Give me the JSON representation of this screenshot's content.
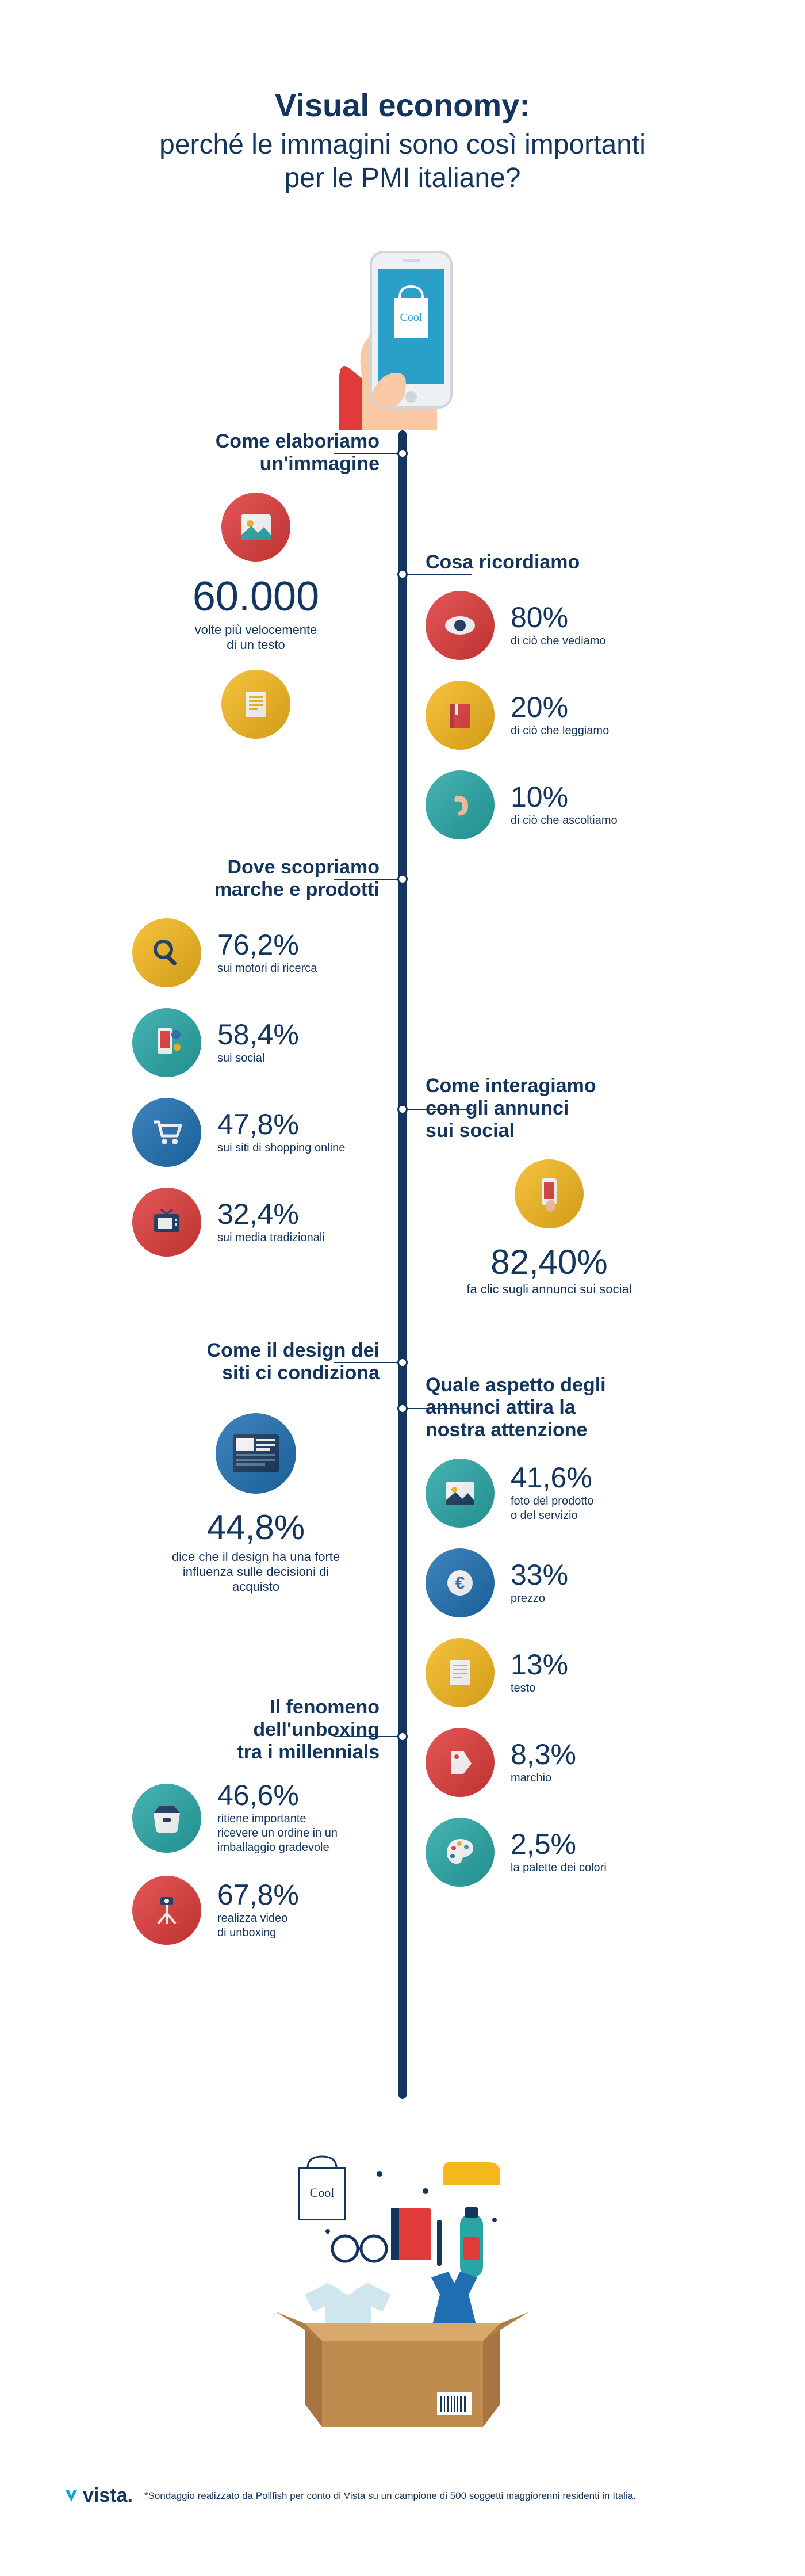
{
  "colors": {
    "navy": "#14355e",
    "blue": "#1f6fb2",
    "red": "#e03a3a",
    "yellow": "#f5b81c",
    "teal": "#28a6a6",
    "skin": "#f8c9a4",
    "box": "#c08b4f"
  },
  "header": {
    "title": "Visual economy:",
    "subtitle": "perché le immagini sono così importanti\nper le PMI italiane?"
  },
  "sections": {
    "process": {
      "title": "Come elaboriamo\nun'immagine",
      "stat_value": "60.000",
      "stat_label": "volte più velocemente\ndi un testo"
    },
    "remember": {
      "title": "Cosa ricordiamo",
      "items": [
        {
          "icon": "eye",
          "color": "#e03a3a",
          "value": "80%",
          "label": "di ciò che vediamo"
        },
        {
          "icon": "book",
          "color": "#f5b81c",
          "value": "20%",
          "label": "di ciò che leggiamo"
        },
        {
          "icon": "ear",
          "color": "#28a6a6",
          "value": "10%",
          "label": "di ciò che ascoltiamo"
        }
      ]
    },
    "discover": {
      "title": "Dove scopriamo\nmarche e prodotti",
      "items": [
        {
          "icon": "search",
          "color": "#f5b81c",
          "value": "76,2%",
          "label": "sui motori di ricerca"
        },
        {
          "icon": "social",
          "color": "#28a6a6",
          "value": "58,4%",
          "label": "sui social"
        },
        {
          "icon": "cart",
          "color": "#1f6fb2",
          "value": "47,8%",
          "label": "sui siti di shopping online"
        },
        {
          "icon": "tv",
          "color": "#e03a3a",
          "value": "32,4%",
          "label": "sui media tradizionali"
        }
      ]
    },
    "interact": {
      "title": "Come interagiamo\ncon gli annunci\nsui social",
      "value": "82,40%",
      "label": "fa clic sugli annunci sui social"
    },
    "design": {
      "title": "Come il design dei\nsiti ci condiziona",
      "value": "44,8%",
      "label": "dice che il design ha una forte\ninfluenza sulle decisioni di acquisto"
    },
    "attention": {
      "title": "Quale aspetto degli\nannunci attira la\nnostra attenzione",
      "items": [
        {
          "icon": "photo",
          "color": "#28a6a6",
          "value": "41,6%",
          "label": "foto del prodotto\no del servizio"
        },
        {
          "icon": "euro",
          "color": "#1f6fb2",
          "value": "33%",
          "label": "prezzo"
        },
        {
          "icon": "text",
          "color": "#f5b81c",
          "value": "13%",
          "label": "testo"
        },
        {
          "icon": "tag",
          "color": "#e03a3a",
          "value": "8,3%",
          "label": "marchio"
        },
        {
          "icon": "palette",
          "color": "#28a6a6",
          "value": "2,5%",
          "label": "la palette dei colori"
        }
      ]
    },
    "unboxing": {
      "title": "Il fenomeno\ndell'unboxing\ntra i millennials",
      "items": [
        {
          "icon": "bag",
          "color": "#28a6a6",
          "value": "46,6%",
          "label": "ritiene importante\nricevere un ordine in un\nimballaggio gradevole"
        },
        {
          "icon": "tripod",
          "color": "#e03a3a",
          "value": "67,8%",
          "label": "realizza video\ndi unboxing"
        }
      ]
    }
  },
  "footer": {
    "logo": "vista.",
    "note": "*Sondaggio realizzato da Pollfish per conto di Vista su un campione di 500 soggetti maggiorenni residenti in Italia."
  }
}
